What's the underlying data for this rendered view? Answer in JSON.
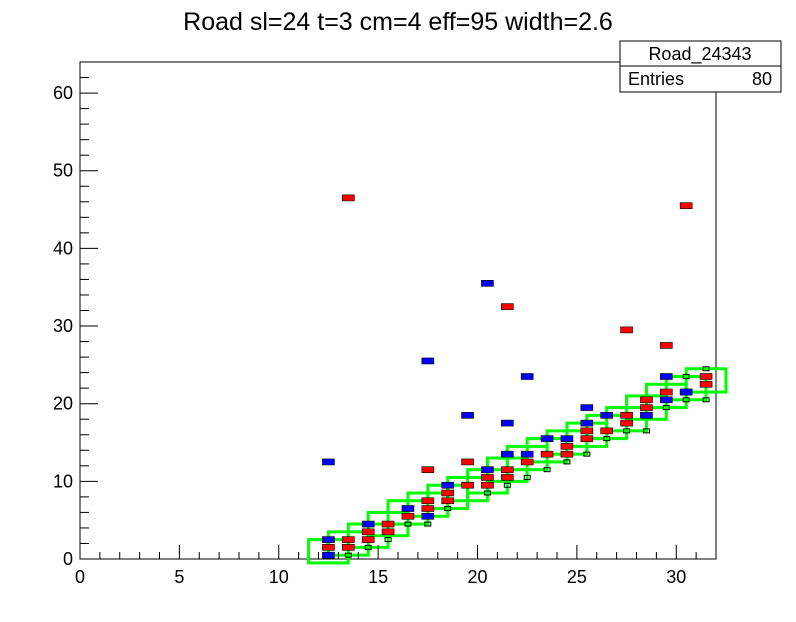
{
  "chart_data": {
    "type": "scatter",
    "title": "Road sl=24 t=3 cm=4 eff=95 width=2.6",
    "xlabel": "",
    "ylabel": "",
    "xlim": [
      0,
      32
    ],
    "ylim": [
      0,
      64
    ],
    "x_ticks": [
      0,
      5,
      10,
      15,
      20,
      25,
      30
    ],
    "y_ticks": [
      0,
      10,
      20,
      30,
      40,
      50,
      60
    ],
    "grid": false,
    "stats_box": {
      "name": "Road_24343",
      "entries_label": "Entries",
      "entries_value": "80"
    },
    "colors": {
      "red": "#ff0000",
      "blue": "#0000ff",
      "green": "#00ff00",
      "black": "#000000"
    },
    "road_boxes": [
      {
        "x": 12.5,
        "y": 1
      },
      {
        "x": 13.5,
        "y": 2
      },
      {
        "x": 14.5,
        "y": 3
      },
      {
        "x": 15.5,
        "y": 4.5
      },
      {
        "x": 16.5,
        "y": 6
      },
      {
        "x": 17.5,
        "y": 7
      },
      {
        "x": 18.5,
        "y": 8
      },
      {
        "x": 19.5,
        "y": 9
      },
      {
        "x": 20.5,
        "y": 10
      },
      {
        "x": 21.5,
        "y": 11.5
      },
      {
        "x": 22.5,
        "y": 13
      },
      {
        "x": 23.5,
        "y": 14
      },
      {
        "x": 24.5,
        "y": 15
      },
      {
        "x": 25.5,
        "y": 16
      },
      {
        "x": 26.5,
        "y": 17
      },
      {
        "x": 27.5,
        "y": 18
      },
      {
        "x": 28.5,
        "y": 19.5
      },
      {
        "x": 29.5,
        "y": 21
      },
      {
        "x": 30.5,
        "y": 22
      },
      {
        "x": 31.5,
        "y": 23
      }
    ],
    "series": [
      {
        "color": "red",
        "points": [
          {
            "x": 12.5,
            "y": 1.5
          },
          {
            "x": 13.5,
            "y": 1.5
          },
          {
            "x": 13.5,
            "y": 2.5
          },
          {
            "x": 14.5,
            "y": 2.5
          },
          {
            "x": 14.5,
            "y": 3.5
          },
          {
            "x": 15.5,
            "y": 3.5
          },
          {
            "x": 15.5,
            "y": 4.5
          },
          {
            "x": 16.5,
            "y": 5.5
          },
          {
            "x": 17.5,
            "y": 6.5
          },
          {
            "x": 17.5,
            "y": 7.5
          },
          {
            "x": 18.5,
            "y": 7.5
          },
          {
            "x": 18.5,
            "y": 8.5
          },
          {
            "x": 19.5,
            "y": 9.5
          },
          {
            "x": 20.5,
            "y": 9.5
          },
          {
            "x": 20.5,
            "y": 10.5
          },
          {
            "x": 21.5,
            "y": 10.5
          },
          {
            "x": 21.5,
            "y": 11.5
          },
          {
            "x": 22.5,
            "y": 12.5
          },
          {
            "x": 23.5,
            "y": 13.5
          },
          {
            "x": 24.5,
            "y": 13.5
          },
          {
            "x": 24.5,
            "y": 14.5
          },
          {
            "x": 25.5,
            "y": 15.5
          },
          {
            "x": 25.5,
            "y": 16.5
          },
          {
            "x": 26.5,
            "y": 16.5
          },
          {
            "x": 27.5,
            "y": 17.5
          },
          {
            "x": 27.5,
            "y": 18.5
          },
          {
            "x": 28.5,
            "y": 19.5
          },
          {
            "x": 28.5,
            "y": 20.5
          },
          {
            "x": 29.5,
            "y": 21.5
          },
          {
            "x": 30.5,
            "y": 21.5
          },
          {
            "x": 31.5,
            "y": 22.5
          },
          {
            "x": 31.5,
            "y": 23.5
          },
          {
            "x": 13.5,
            "y": 46.5
          },
          {
            "x": 30.5,
            "y": 45.5
          },
          {
            "x": 21.5,
            "y": 32.5
          },
          {
            "x": 27.5,
            "y": 29.5
          },
          {
            "x": 29.5,
            "y": 27.5
          },
          {
            "x": 17.5,
            "y": 11.5
          },
          {
            "x": 19.5,
            "y": 12.5
          }
        ]
      },
      {
        "color": "blue",
        "points": [
          {
            "x": 12.5,
            "y": 0.5
          },
          {
            "x": 12.5,
            "y": 2.5
          },
          {
            "x": 14.5,
            "y": 4.5
          },
          {
            "x": 16.5,
            "y": 6.5
          },
          {
            "x": 17.5,
            "y": 5.5
          },
          {
            "x": 18.5,
            "y": 9.5
          },
          {
            "x": 20.5,
            "y": 11.5
          },
          {
            "x": 21.5,
            "y": 13.5
          },
          {
            "x": 22.5,
            "y": 13.5
          },
          {
            "x": 23.5,
            "y": 15.5
          },
          {
            "x": 24.5,
            "y": 15.5
          },
          {
            "x": 25.5,
            "y": 17.5
          },
          {
            "x": 26.5,
            "y": 18.5
          },
          {
            "x": 28.5,
            "y": 18.5
          },
          {
            "x": 29.5,
            "y": 20.5
          },
          {
            "x": 30.5,
            "y": 21.5
          },
          {
            "x": 12.5,
            "y": 12.5
          },
          {
            "x": 17.5,
            "y": 25.5
          },
          {
            "x": 19.5,
            "y": 18.5
          },
          {
            "x": 20.5,
            "y": 35.5
          },
          {
            "x": 21.5,
            "y": 17.5
          },
          {
            "x": 22.5,
            "y": 23.5
          },
          {
            "x": 25.5,
            "y": 19.5
          },
          {
            "x": 29.5,
            "y": 23.5
          }
        ]
      },
      {
        "color": "black",
        "points": [
          {
            "x": 13.5,
            "y": 0.5
          },
          {
            "x": 14.5,
            "y": 1.5
          },
          {
            "x": 15.5,
            "y": 2.5
          },
          {
            "x": 16.5,
            "y": 4.5
          },
          {
            "x": 17.5,
            "y": 4.5
          },
          {
            "x": 18.5,
            "y": 6.5
          },
          {
            "x": 20.5,
            "y": 8.5
          },
          {
            "x": 21.5,
            "y": 9.5
          },
          {
            "x": 22.5,
            "y": 10.5
          },
          {
            "x": 23.5,
            "y": 11.5
          },
          {
            "x": 24.5,
            "y": 12.5
          },
          {
            "x": 25.5,
            "y": 13.5
          },
          {
            "x": 26.5,
            "y": 15.5
          },
          {
            "x": 27.5,
            "y": 16.5
          },
          {
            "x": 28.5,
            "y": 16.5
          },
          {
            "x": 29.5,
            "y": 19.5
          },
          {
            "x": 30.5,
            "y": 20.5
          },
          {
            "x": 30.5,
            "y": 23.5
          },
          {
            "x": 31.5,
            "y": 20.5
          },
          {
            "x": 31.5,
            "y": 24.5
          }
        ]
      }
    ]
  }
}
